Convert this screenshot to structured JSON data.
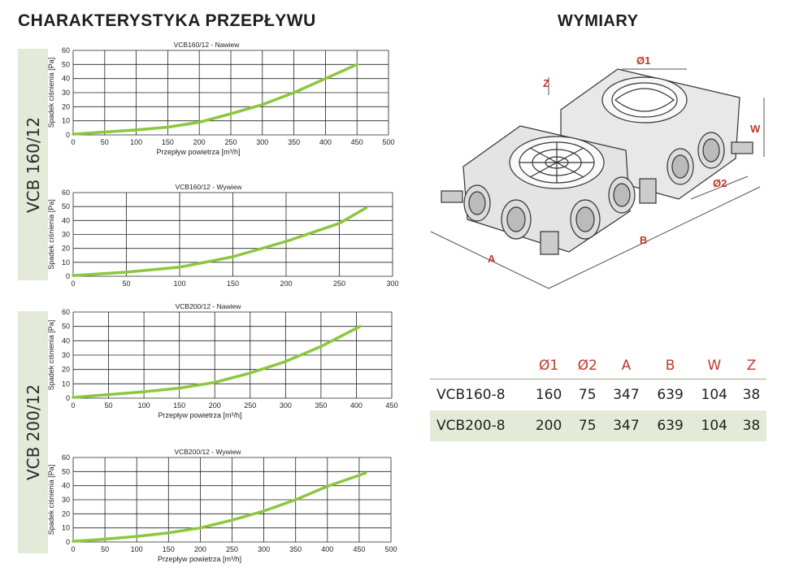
{
  "headings": {
    "left": "CHARAKTERYSTYKA PRZEPŁYWU",
    "right": "WYMIARY"
  },
  "side_labels": [
    "VCB 160/12",
    "VCB 200/12"
  ],
  "chart_data": [
    {
      "type": "line",
      "title": "VCB160/12 - Nawiew",
      "xlabel": "Przepływ powietrza [m³/h]",
      "ylabel": "Spadek ciśnienia [Pa]",
      "xlim": [
        0,
        500
      ],
      "ylim": [
        0,
        60
      ],
      "x_ticks": [
        0,
        50,
        100,
        150,
        200,
        250,
        300,
        350,
        400,
        450,
        500
      ],
      "y_ticks": [
        0,
        10,
        20,
        30,
        40,
        50,
        60
      ],
      "grid": true,
      "color": "#8dc63f",
      "x": [
        0,
        50,
        100,
        150,
        200,
        250,
        300,
        350,
        400,
        450
      ],
      "y": [
        0.5,
        2,
        3.5,
        5.5,
        9,
        15,
        21.5,
        30,
        40,
        50
      ]
    },
    {
      "type": "line",
      "title": "VCB160/12 - Wywiew",
      "xlabel": "",
      "ylabel": "Spadek ciśnienia [Pa]",
      "xlim": [
        0,
        300
      ],
      "ylim": [
        0,
        60
      ],
      "x_ticks": [
        0,
        50,
        100,
        150,
        200,
        250,
        300
      ],
      "y_ticks": [
        0,
        10,
        20,
        30,
        40,
        50,
        60
      ],
      "grid": true,
      "color": "#8dc63f",
      "x": [
        0,
        50,
        100,
        150,
        200,
        250,
        275
      ],
      "y": [
        0.5,
        3,
        6.5,
        14,
        25,
        38,
        49
      ]
    },
    {
      "type": "line",
      "title": "VCB200/12 - Nawiew",
      "xlabel": "Przepływ powietrza [m³/h]",
      "ylabel": "Spadek ciśnienia [Pa]",
      "xlim": [
        0,
        450
      ],
      "ylim": [
        0,
        60
      ],
      "x_ticks": [
        0,
        50,
        100,
        150,
        200,
        250,
        300,
        350,
        400,
        450
      ],
      "y_ticks": [
        0,
        10,
        20,
        30,
        40,
        50,
        60
      ],
      "grid": true,
      "color": "#8dc63f",
      "x": [
        0,
        50,
        100,
        150,
        200,
        250,
        300,
        350,
        405
      ],
      "y": [
        0.5,
        2.5,
        4.5,
        7,
        11,
        17.5,
        25.5,
        36,
        50
      ]
    },
    {
      "type": "line",
      "title": "VCB200/12 - Wywiew",
      "xlabel": "Przepływ powietrza [m³/h]",
      "ylabel": "Spadek ciśnienia [Pa]",
      "xlim": [
        0,
        500
      ],
      "ylim": [
        0,
        60
      ],
      "x_ticks": [
        0,
        50,
        100,
        150,
        200,
        250,
        300,
        350,
        400,
        450,
        500
      ],
      "y_ticks": [
        0,
        10,
        20,
        30,
        40,
        50,
        60
      ],
      "grid": true,
      "color": "#8dc63f",
      "x": [
        0,
        50,
        100,
        150,
        200,
        250,
        300,
        350,
        400,
        460
      ],
      "y": [
        0.5,
        2,
        4,
        6.5,
        10,
        15.5,
        22,
        30,
        39.5,
        49
      ]
    }
  ],
  "drawing_labels": {
    "d1": "Ø1",
    "d2": "Ø2",
    "a": "A",
    "b": "B",
    "w": "W",
    "z": "Z"
  },
  "dimensions_table": {
    "headers": [
      "",
      "Ø1",
      "Ø2",
      "A",
      "B",
      "W",
      "Z"
    ],
    "rows": [
      {
        "name": "VCB160-8",
        "values": [
          "160",
          "75",
          "347",
          "639",
          "104",
          "38"
        ]
      },
      {
        "name": "VCB200-8",
        "values": [
          "200",
          "75",
          "347",
          "639",
          "104",
          "38"
        ]
      }
    ]
  }
}
